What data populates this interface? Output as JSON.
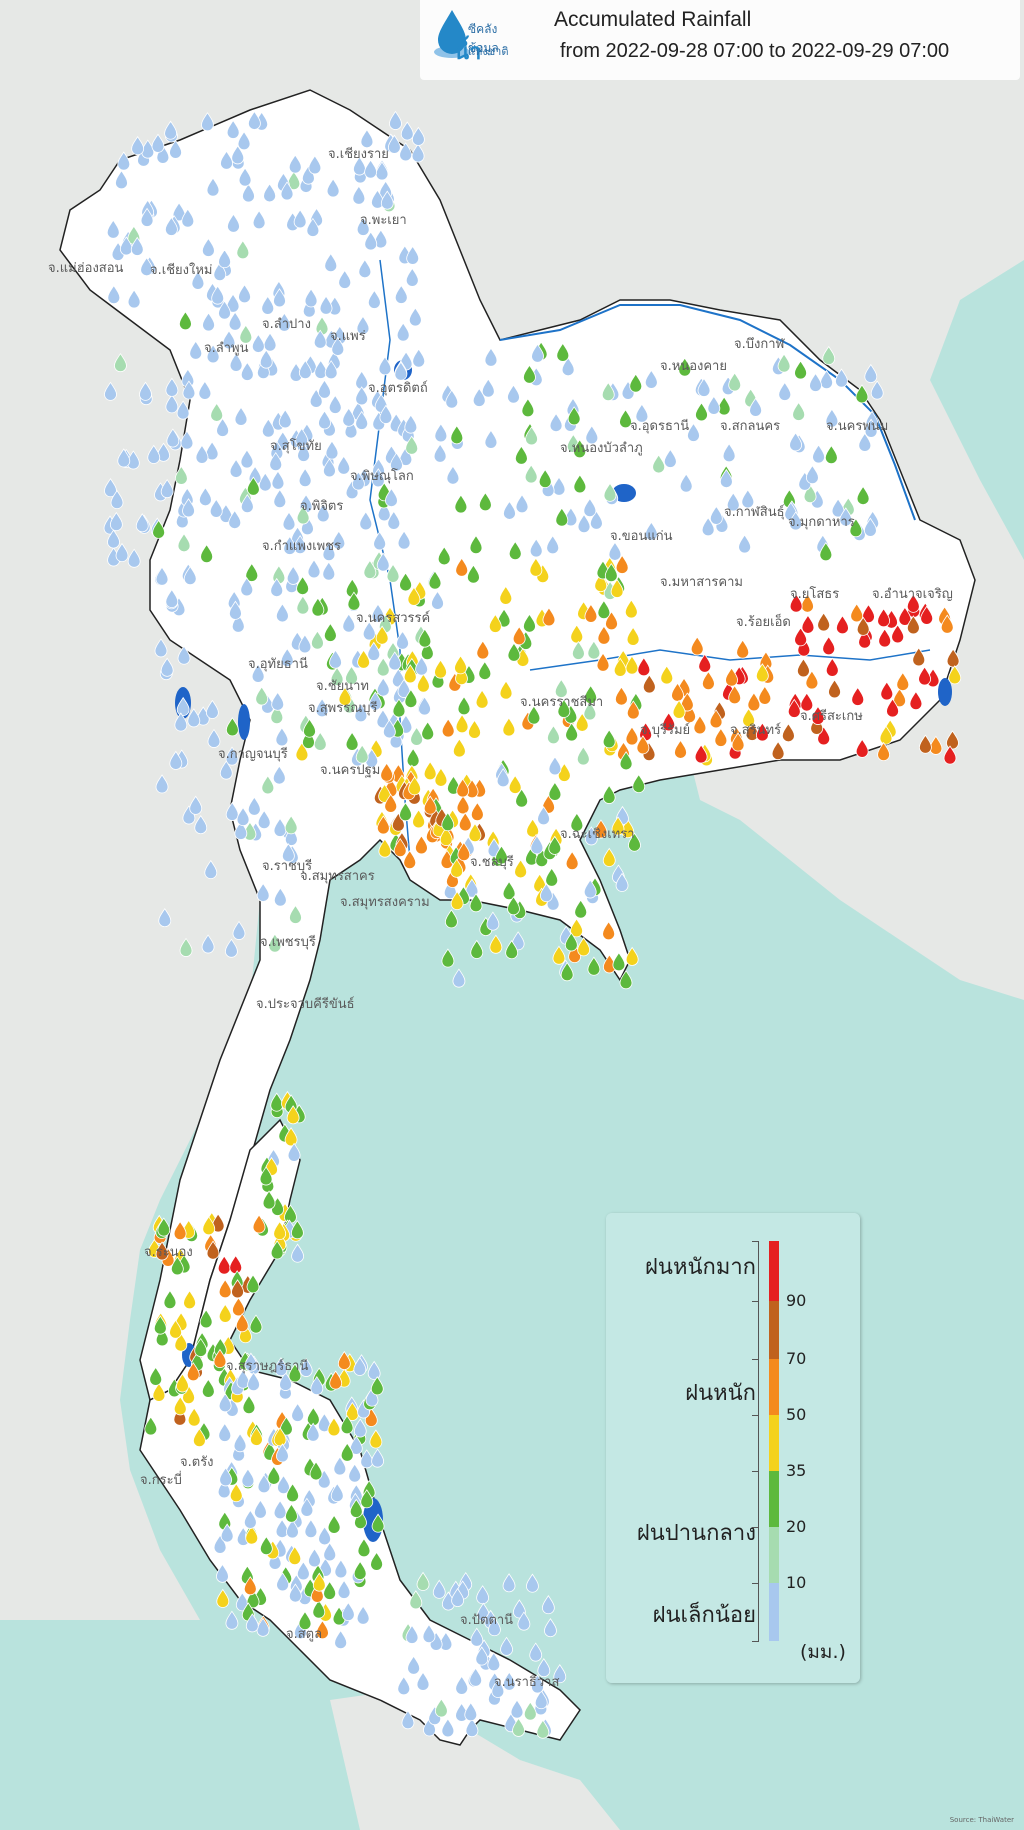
{
  "header": {
    "logo_line1": "ซีคลังข้อมูล",
    "logo_big": "น้ำ",
    "logo_line2": "แห่งชาติ",
    "title": "Accumulated Rainfall",
    "subtitle": "from  2022-09-28 07:00 to 2022-09-29 07:00"
  },
  "legend": {
    "categories": [
      "ฝนหนักมาก",
      "ฝนหนัก",
      "ฝนปานกลาง",
      "ฝนเล็กน้อย"
    ],
    "ticks": [
      "90",
      "70",
      "50",
      "35",
      "20",
      "10"
    ],
    "unit": "(มม.)",
    "colors": {
      "light_blue": "#a8c8ee",
      "light_green": "#a6dcb0",
      "green": "#5db93d",
      "yellow": "#f4d21c",
      "orange": "#f48a1e",
      "brown": "#c0621e",
      "red": "#e52020"
    }
  },
  "provinces": [
    "จ.เชียงราย",
    "จ.พะเยา",
    "จ.แม่ฮ่องสอน",
    "จ.เชียงใหม่",
    "จ.ลำปาง",
    "จ.ลำพูน",
    "จ.แพร่",
    "จ.อุตรดิตถ์",
    "จ.สุโขทัย",
    "จ.พิษณุโลก",
    "จ.พิจิตร",
    "จ.กำแพงเพชร",
    "จ.นครสวรรค์",
    "จ.อุทัยธานี",
    "จ.ชัยนาท",
    "จ.สุพรรณบุรี",
    "จ.กาญจนบุรี",
    "จ.นครปฐม",
    "จ.ราชบุรี",
    "จ.สมุทรสาคร",
    "จ.สมุทรสงคราม",
    "จ.เพชรบุรี",
    "จ.ประจวบคีรีขันธ์",
    "จ.บึงกาฬ",
    "จ.หนองคาย",
    "จ.อุดรธานี",
    "จ.สกลนคร",
    "จ.นครพนม",
    "จ.หนองบัวลำภู",
    "จ.ขอนแก่น",
    "จ.กาฬสินธุ์",
    "จ.มุกดาหาร",
    "จ.มหาสารคาม",
    "จ.ร้อยเอ็ด",
    "จ.ยโสธร",
    "จ.อำนาจเจริญ",
    "จ.นครราชสีมา",
    "จ.บุรีรัมย์",
    "จ.สุรินทร์",
    "จ.ศรีสะเกษ",
    "จ.ฉะเชิงเทรา",
    "จ.ชลบุรี",
    "จ.ระนอง",
    "จ.สุราษฎร์ธานี",
    "จ.กระบี่",
    "จ.สตูล",
    "จ.ปัตตานี",
    "จ.นราธิวาส",
    "จ.ตรัง"
  ],
  "credit": "Source: ThaiWater"
}
